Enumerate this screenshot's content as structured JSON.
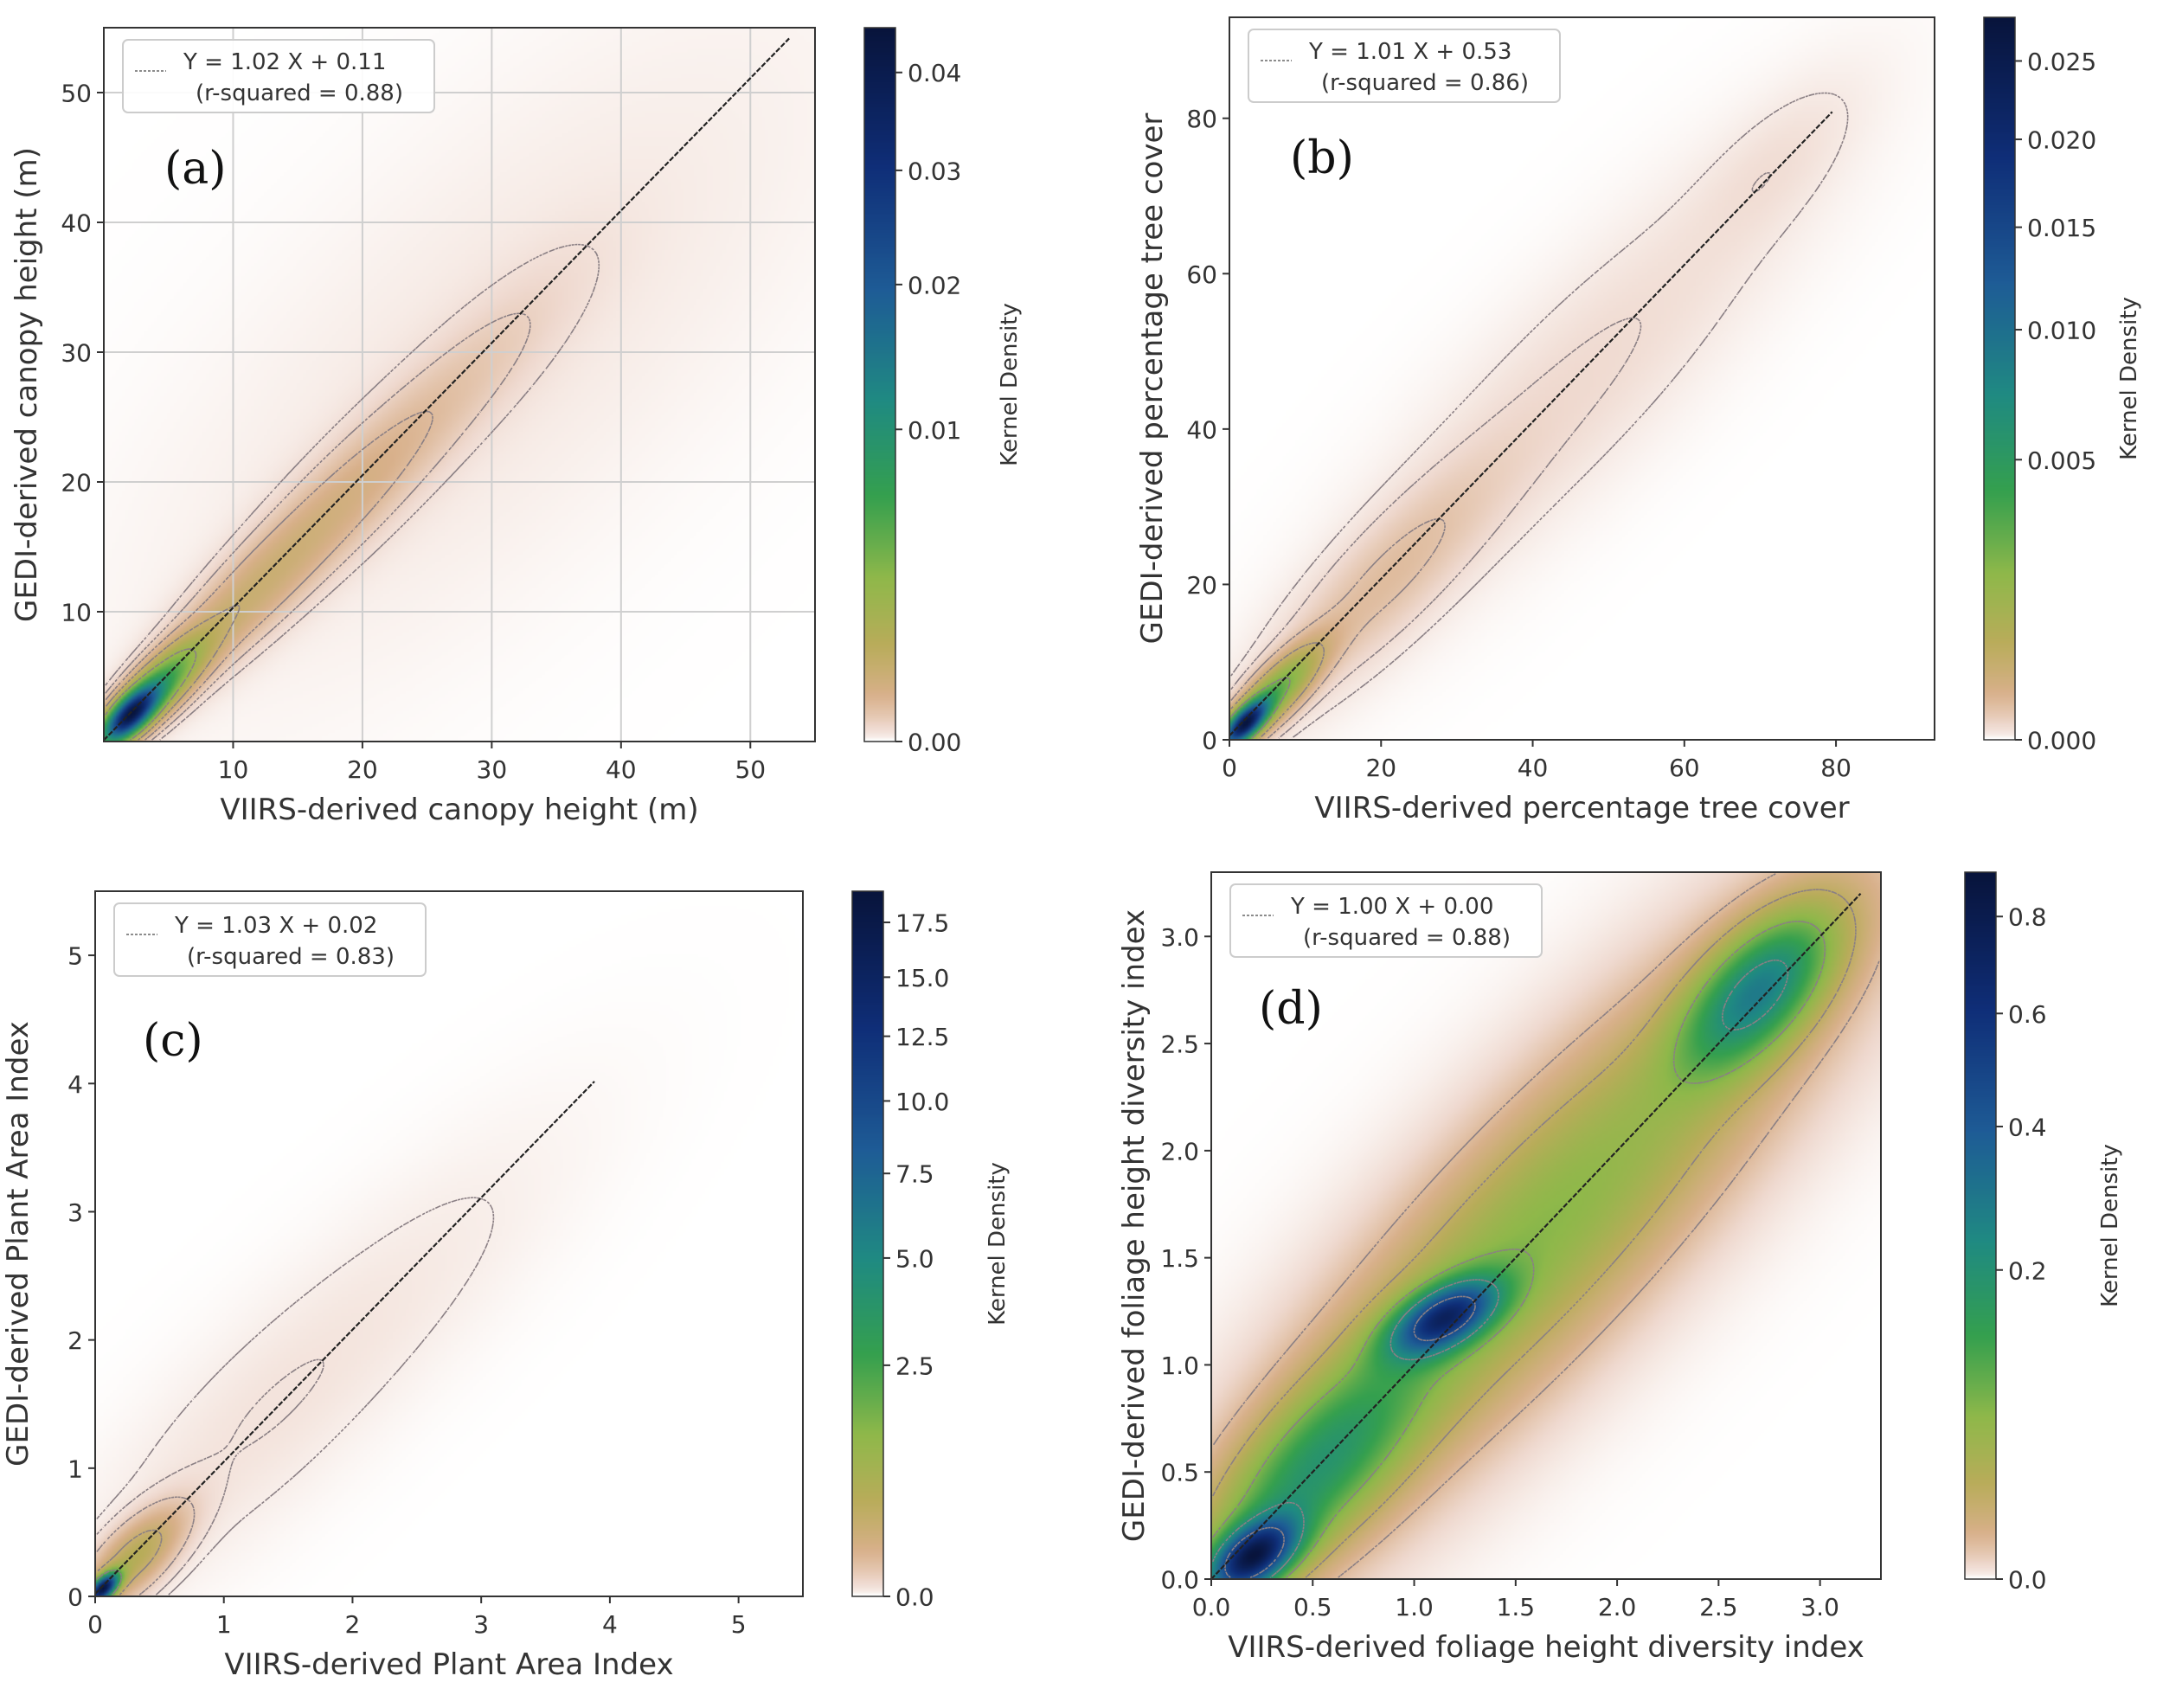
{
  "colors": {
    "cmap": [
      "#ffffff",
      "#efd9cf",
      "#d8b08a",
      "#b9ac5a",
      "#8fb84a",
      "#35a04e",
      "#1f8a82",
      "#1e5c96",
      "#0f2e78",
      "#08143c"
    ],
    "contour": "#8a7f84",
    "fit_line": "#222222",
    "grid": "#cfcfcf"
  },
  "chart_data": [
    {
      "type": "density-scatter",
      "panel_label": "(a)",
      "xlabel": "VIIRS-derived canopy height (m)",
      "ylabel": "GEDI-derived canopy height (m)",
      "xlim": [
        0,
        55
      ],
      "ylim": [
        0,
        55
      ],
      "xticks": [
        10,
        20,
        30,
        40,
        50
      ],
      "yticks": [
        10,
        20,
        30,
        40,
        50
      ],
      "grid": true,
      "legend": {
        "equation": "Y = 1.02 X + 0.11",
        "rsq": "(r-squared = 0.88)"
      },
      "fit": {
        "slope": 1.02,
        "intercept": 0.11,
        "x_range": [
          0,
          53
        ]
      },
      "colorbar": {
        "label": "Kernel Density",
        "ticks": [
          "0.00",
          "0.01",
          "0.02",
          "0.03",
          "0.04"
        ],
        "tick_values": [
          0,
          0.01,
          0.02,
          0.03,
          0.04
        ],
        "max": 0.045,
        "gamma": 0.55
      },
      "density": {
        "components": [
          {
            "x": 2,
            "y": 2,
            "sx": 1.4,
            "sy": 1.4,
            "rho": 0.7,
            "w": 1.0
          },
          {
            "x": 4,
            "y": 4,
            "sx": 2.5,
            "sy": 2.5,
            "rho": 0.8,
            "w": 0.4
          },
          {
            "x": 10,
            "y": 10,
            "sx": 4.5,
            "sy": 4.5,
            "rho": 0.85,
            "w": 0.09
          },
          {
            "x": 18,
            "y": 18,
            "sx": 5.5,
            "sy": 5.5,
            "rho": 0.85,
            "w": 0.075
          },
          {
            "x": 28,
            "y": 28,
            "sx": 6,
            "sy": 6,
            "rho": 0.85,
            "w": 0.03
          },
          {
            "x": 30,
            "y": 30,
            "sx": 16,
            "sy": 16,
            "rho": 0.75,
            "w": 0.01
          }
        ],
        "contour_levels": [
          0.012,
          0.025,
          0.05,
          0.1,
          0.2
        ]
      }
    },
    {
      "type": "density-scatter",
      "panel_label": "(b)",
      "xlabel": "VIIRS-derived percentage tree cover",
      "ylabel": "GEDI-derived percentage tree cover",
      "xlim": [
        0,
        93
      ],
      "ylim": [
        0,
        93
      ],
      "xticks": [
        0,
        20,
        40,
        60,
        80
      ],
      "yticks": [
        0,
        20,
        40,
        60,
        80
      ],
      "grid": false,
      "legend": {
        "equation": "Y = 1.01 X + 0.53",
        "rsq": "(r-squared = 0.86)"
      },
      "fit": {
        "slope": 1.01,
        "intercept": 0.53,
        "x_range": [
          0,
          79.5
        ]
      },
      "colorbar": {
        "label": "Kernel Density",
        "ticks": [
          "0.000",
          "0.005",
          "0.010",
          "0.015",
          "0.020",
          "0.025"
        ],
        "tick_values": [
          0,
          0.005,
          0.01,
          0.015,
          0.02,
          0.025
        ],
        "max": 0.028,
        "gamma": 0.55
      },
      "density": {
        "components": [
          {
            "x": 2,
            "y": 2,
            "sx": 2,
            "sy": 2,
            "rho": 0.7,
            "w": 1.0
          },
          {
            "x": 6,
            "y": 6,
            "sx": 4,
            "sy": 4,
            "rho": 0.8,
            "w": 0.3
          },
          {
            "x": 20,
            "y": 20,
            "sx": 10,
            "sy": 10,
            "rho": 0.85,
            "w": 0.05
          },
          {
            "x": 45,
            "y": 45,
            "sx": 18,
            "sy": 18,
            "rho": 0.88,
            "w": 0.02
          },
          {
            "x": 72,
            "y": 74,
            "sx": 7,
            "sy": 7,
            "rho": 0.7,
            "w": 0.012
          }
        ],
        "contour_levels": [
          0.006,
          0.015,
          0.04,
          0.1,
          0.25
        ]
      }
    },
    {
      "type": "density-scatter",
      "panel_label": "(c)",
      "xlabel": "VIIRS-derived Plant Area Index",
      "ylabel": "GEDI-derived Plant Area Index",
      "xlim": [
        0,
        5.5
      ],
      "ylim": [
        0,
        5.5
      ],
      "xticks": [
        0,
        1,
        2,
        3,
        4,
        5
      ],
      "yticks": [
        0,
        1,
        2,
        3,
        4,
        5
      ],
      "grid": false,
      "legend": {
        "equation": "Y = 1.03 X + 0.02",
        "rsq": "(r-squared = 0.83)"
      },
      "fit": {
        "slope": 1.03,
        "intercept": 0.02,
        "x_range": [
          0,
          3.88
        ]
      },
      "colorbar": {
        "label": "Kernel Density",
        "ticks": [
          "0.0",
          "2.5",
          "5.0",
          "7.5",
          "10.0",
          "12.5",
          "15.0",
          "17.5"
        ],
        "tick_values": [
          0,
          2.5,
          5,
          7.5,
          10,
          12.5,
          15,
          17.5
        ],
        "max": 19,
        "gamma": 0.55
      },
      "density": {
        "components": [
          {
            "x": 0.06,
            "y": 0.06,
            "sx": 0.08,
            "sy": 0.08,
            "rho": 0.6,
            "w": 1.0
          },
          {
            "x": 0.3,
            "y": 0.3,
            "sx": 0.25,
            "sy": 0.25,
            "rho": 0.7,
            "w": 0.15
          },
          {
            "x": 1.2,
            "y": 1.3,
            "sx": 0.8,
            "sy": 0.8,
            "rho": 0.8,
            "w": 0.01
          },
          {
            "x": 2.5,
            "y": 2.5,
            "sx": 0.8,
            "sy": 0.8,
            "rho": 0.8,
            "w": 0.005
          }
        ],
        "contour_levels": [
          0.004,
          0.01,
          0.03,
          0.1,
          0.3
        ]
      }
    },
    {
      "type": "density-scatter",
      "panel_label": "(d)",
      "xlabel": "VIIRS-derived foliage height diversity index",
      "ylabel": "GEDI-derived foliage height diversity index",
      "xlim": [
        0,
        3.3
      ],
      "ylim": [
        0,
        3.3
      ],
      "xticks": [
        0,
        0.5,
        1,
        1.5,
        2,
        2.5,
        3
      ],
      "xtick_labels": [
        "0.0",
        "0.5",
        "1.0",
        "1.5",
        "2.0",
        "2.5",
        "3.0"
      ],
      "yticks": [
        0,
        0.5,
        1,
        1.5,
        2,
        2.5,
        3
      ],
      "ytick_labels": [
        "0.0",
        "0.5",
        "1.0",
        "1.5",
        "2.0",
        "2.5",
        "3.0"
      ],
      "grid": false,
      "legend": {
        "equation": "Y = 1.00 X + 0.00",
        "rsq": "(r-squared = 0.88)"
      },
      "fit": {
        "slope": 1.0,
        "intercept": 0.0,
        "x_range": [
          0,
          3.2
        ]
      },
      "colorbar": {
        "label": "Kernel Density",
        "ticks": [
          "0.0",
          "0.2",
          "0.4",
          "0.6",
          "0.8"
        ],
        "tick_values": [
          0,
          0.2,
          0.4,
          0.6,
          0.8
        ],
        "max": 0.9,
        "gamma": 0.55
      },
      "density": {
        "components": [
          {
            "x": 0.2,
            "y": 0.1,
            "sx": 0.15,
            "sy": 0.12,
            "rho": 0.5,
            "w": 1.0
          },
          {
            "x": 1.15,
            "y": 1.22,
            "sx": 0.18,
            "sy": 0.12,
            "rho": 0.55,
            "w": 0.85
          },
          {
            "x": 2.7,
            "y": 2.75,
            "sx": 0.25,
            "sy": 0.25,
            "rho": 0.6,
            "w": 0.55
          },
          {
            "x": 1.6,
            "y": 1.6,
            "sx": 0.9,
            "sy": 0.9,
            "rho": 0.88,
            "w": 0.3
          },
          {
            "x": 0.5,
            "y": 0.5,
            "sx": 0.35,
            "sy": 0.35,
            "rho": 0.7,
            "w": 0.4
          }
        ],
        "contour_levels": [
          0.05,
          0.12,
          0.25,
          0.45,
          0.7
        ]
      }
    }
  ]
}
